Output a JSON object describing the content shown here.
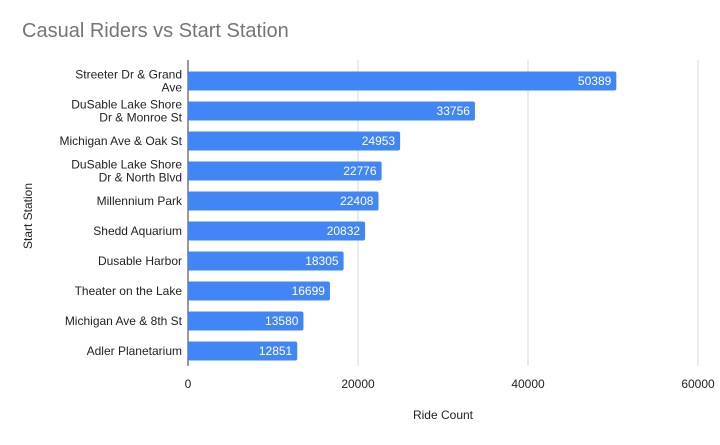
{
  "chart_data": {
    "type": "bar",
    "orientation": "horizontal",
    "title": "Casual Riders vs Start Station",
    "xlabel": "Ride Count",
    "ylabel": "Start Station",
    "categories": [
      [
        "Streeter Dr & Grand",
        "Ave"
      ],
      [
        "DuSable Lake Shore",
        "Dr & Monroe St"
      ],
      [
        "Michigan Ave & Oak St"
      ],
      [
        "DuSable Lake Shore",
        "Dr & North Blvd"
      ],
      [
        "Millennium Park"
      ],
      [
        "Shedd Aquarium"
      ],
      [
        "Dusable Harbor"
      ],
      [
        "Theater on the Lake"
      ],
      [
        "Michigan Ave & 8th St"
      ],
      [
        "Adler Planetarium"
      ]
    ],
    "values": [
      50389,
      33756,
      24953,
      22776,
      22408,
      20832,
      18305,
      16699,
      13580,
      12851
    ],
    "xlim": [
      0,
      60000
    ],
    "xticks": [
      "0",
      "20000",
      "40000",
      "60000"
    ],
    "bar_color": "#4285F4",
    "grid": true,
    "data_labels": true
  }
}
